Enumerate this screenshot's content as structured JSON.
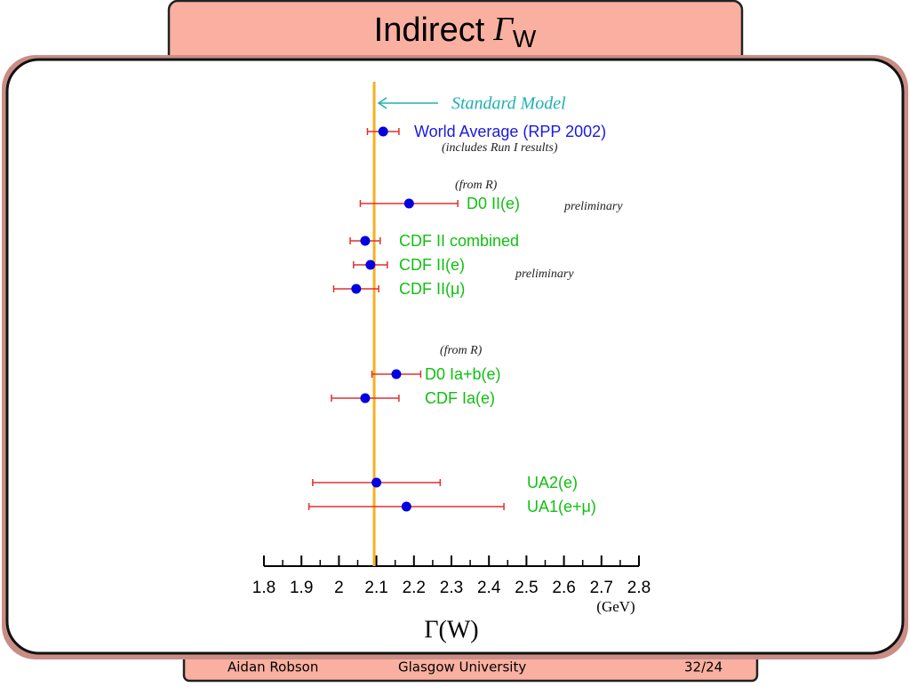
{
  "chart_data": {
    "type": "forest",
    "title": "Indirect",
    "title_symbol": "Γ",
    "title_subscript": "W",
    "xlabel": "Γ(W)",
    "xunit": "(GeV)",
    "xlim": [
      1.8,
      2.8
    ],
    "xticks": [
      1.8,
      1.9,
      2,
      2.1,
      2.2,
      2.3,
      2.4,
      2.5,
      2.6,
      2.7,
      2.8
    ],
    "xminorticks": [
      1.85,
      1.95,
      2.05,
      2.15,
      2.25,
      2.35,
      2.45,
      2.55,
      2.65,
      2.75
    ],
    "reference": {
      "label": "Standard Model",
      "value": 2.094,
      "color": "#f5b020"
    },
    "marker_color": "#0000e0",
    "error_color": "#e03030",
    "points": [
      {
        "label": "World Average (RPP 2002)",
        "value": 2.118,
        "error": 0.042,
        "label_color": "#1a1ae0"
      },
      {
        "label": "D0 II(e)",
        "value": 2.187,
        "error": 0.13,
        "label_color": "#10c010"
      },
      {
        "label": "CDF II combined",
        "value": 2.07,
        "error": 0.04,
        "label_color": "#10c010"
      },
      {
        "label": "CDF II(e)",
        "value": 2.084,
        "error": 0.045,
        "label_color": "#10c010"
      },
      {
        "label": "CDF II(μ)",
        "value": 2.046,
        "error": 0.06,
        "label_color": "#10c010"
      },
      {
        "label": "D0 Ia+b(e)",
        "value": 2.153,
        "error": 0.065,
        "label_color": "#10c010"
      },
      {
        "label": "CDF Ia(e)",
        "value": 2.07,
        "error": 0.09,
        "label_color": "#10c010"
      },
      {
        "label": "UA2(e)",
        "value": 2.1,
        "error": 0.17,
        "label_color": "#10c010"
      },
      {
        "label": "UA1(e+μ)",
        "value": 2.18,
        "error": 0.26,
        "label_color": "#10c010"
      }
    ],
    "annotations": [
      "(includes Run I results)",
      "(from R)",
      "preliminary",
      "preliminary",
      "(from R)"
    ]
  },
  "footer": {
    "author": "Aidan Robson",
    "institution": "Glasgow University",
    "page": "32/24"
  }
}
